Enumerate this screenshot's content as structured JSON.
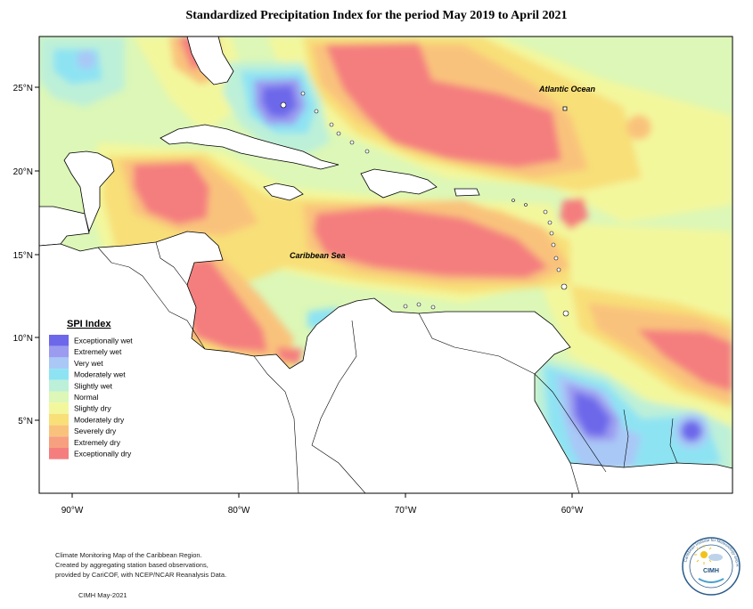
{
  "title": "Standardized Precipitation Index for the period May 2019 to April 2021",
  "labels": {
    "atlantic": "Atlantic Ocean",
    "caribbean": "Caribbean Sea"
  },
  "axes": {
    "lat_ticks": [
      "25°N",
      "20°N",
      "15°N",
      "10°N",
      "5°N"
    ],
    "lon_ticks": [
      "90°W",
      "80°W",
      "70°W",
      "60°W"
    ]
  },
  "legend": {
    "title": "SPI Index",
    "items": [
      {
        "label": "Exceptionally wet",
        "color": "#6d67ea"
      },
      {
        "label": "Extremely wet",
        "color": "#9b9bf0"
      },
      {
        "label": "Very wet",
        "color": "#a9c8f6"
      },
      {
        "label": "Moderately wet",
        "color": "#8ee3f3"
      },
      {
        "label": "Slightly wet",
        "color": "#bdf0d8"
      },
      {
        "label": "Normal",
        "color": "#dcf7b7"
      },
      {
        "label": "Slightly dry",
        "color": "#f3f79c"
      },
      {
        "label": "Moderately dry",
        "color": "#f8df78"
      },
      {
        "label": "Severely dry",
        "color": "#f9c27c"
      },
      {
        "label": "Extremely dry",
        "color": "#f6a07f"
      },
      {
        "label": "Exceptionally dry",
        "color": "#f47e7e"
      }
    ]
  },
  "footer": {
    "line1": "Climate Monitoring Map of the Caribbean Region.",
    "line2": "Created by aggregating station based observations,",
    "line3": "provided by CariCOF, with NCEP/NCAR Reanalysis Data.",
    "credit": "CIMH May-2021"
  },
  "logo": {
    "text": "CIMH",
    "ring_text": "Caribbean Institute for Meteorology and Hydrology"
  }
}
